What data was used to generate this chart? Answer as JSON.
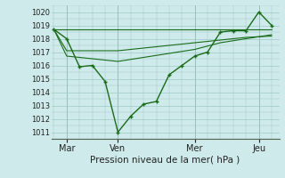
{
  "xlabel": "Pression niveau de la mer( hPa )",
  "bg_color": "#ceeaea",
  "grid_color": "#a0c8c8",
  "line_color": "#1a6b1a",
  "ylim": [
    1010.5,
    1020.5
  ],
  "yticks": [
    1011,
    1012,
    1013,
    1014,
    1015,
    1016,
    1017,
    1018,
    1019,
    1020
  ],
  "xtick_labels": [
    "Mar",
    "Ven",
    "Mer",
    "Jeu"
  ],
  "xtick_positions": [
    0.5,
    2.5,
    5.5,
    8.0
  ],
  "vline_positions": [
    0.5,
    2.5,
    5.5,
    8.0
  ],
  "line1_x": [
    0.0,
    0.5,
    1.0,
    1.5,
    2.0,
    2.5,
    3.0,
    3.5,
    4.0,
    4.5,
    5.0,
    5.5,
    6.0,
    6.5,
    7.0,
    7.5,
    8.0,
    8.5
  ],
  "line1_y": [
    1018.7,
    1018.0,
    1015.9,
    1016.0,
    1014.8,
    1011.0,
    1012.2,
    1013.1,
    1013.3,
    1015.3,
    1016.0,
    1016.7,
    1017.0,
    1018.5,
    1018.6,
    1018.6,
    1020.0,
    1019.0
  ],
  "line2_x": [
    0.0,
    0.5,
    1.5,
    2.5,
    3.5,
    4.5,
    5.5,
    6.5,
    7.5,
    8.5
  ],
  "line2_y": [
    1018.7,
    1016.7,
    1016.5,
    1016.3,
    1016.6,
    1016.9,
    1017.2,
    1017.7,
    1018.0,
    1018.3
  ],
  "line3_x": [
    0.0,
    0.5,
    1.5,
    2.5,
    3.5,
    4.5,
    5.5,
    6.5,
    7.5,
    8.5
  ],
  "line3_y": [
    1018.7,
    1017.1,
    1017.1,
    1017.1,
    1017.3,
    1017.5,
    1017.7,
    1017.9,
    1018.1,
    1018.2
  ],
  "line4_x": [
    0.0,
    8.5
  ],
  "line4_y": [
    1018.7,
    1018.7
  ],
  "xlim": [
    -0.1,
    8.8
  ]
}
